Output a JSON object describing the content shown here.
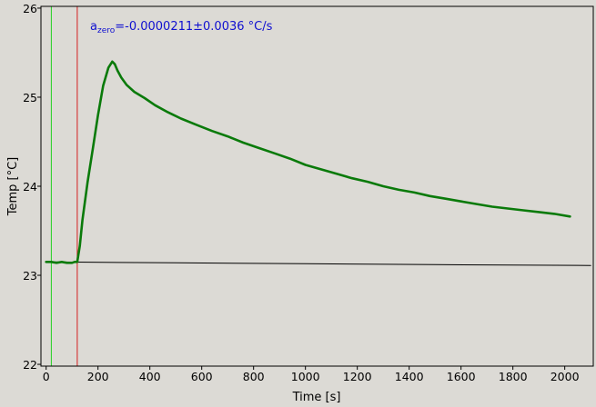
{
  "colors": {
    "background": "#dcdad5",
    "series": "#0a7a0a",
    "baseline": "#000000",
    "start_marker": "#22d022",
    "end_marker": "#d42020",
    "annotation": "#1010d0",
    "axis": "#000000"
  },
  "chart_data": {
    "type": "line",
    "title": "",
    "xlabel": "Time [s]",
    "ylabel": "Temp [°C]",
    "xlim": [
      -20,
      2110
    ],
    "ylim": [
      21.98,
      26.02
    ],
    "xticks": [
      0,
      200,
      400,
      600,
      800,
      1000,
      1200,
      1400,
      1600,
      1800,
      2000
    ],
    "yticks": [
      22,
      23,
      24,
      25,
      26
    ],
    "grid": false,
    "legend": "none",
    "annotation": {
      "base": "a",
      "subscript": "zero",
      "text": "=-0.0000211±0.0036 °C/s",
      "position": "top-left"
    },
    "vertical_markers": [
      {
        "x": 20,
        "color": "start_marker"
      },
      {
        "x": 120,
        "color": "end_marker"
      }
    ],
    "series": [
      {
        "role": "measurement",
        "color": "series",
        "x": [
          0,
          20,
          40,
          60,
          80,
          100,
          110,
          120,
          130,
          140,
          160,
          180,
          200,
          220,
          240,
          255,
          265,
          275,
          290,
          310,
          340,
          380,
          420,
          470,
          520,
          580,
          640,
          700,
          760,
          820,
          880,
          940,
          1000,
          1060,
          1120,
          1180,
          1240,
          1300,
          1360,
          1420,
          1480,
          1540,
          1600,
          1660,
          1720,
          1780,
          1840,
          1900,
          1960,
          2020
        ],
        "y": [
          23.15,
          23.15,
          23.14,
          23.15,
          23.14,
          23.14,
          23.15,
          23.15,
          23.33,
          23.62,
          24.05,
          24.42,
          24.8,
          25.13,
          25.33,
          25.4,
          25.37,
          25.3,
          25.22,
          25.14,
          25.06,
          24.99,
          24.91,
          24.83,
          24.76,
          24.69,
          24.62,
          24.56,
          24.49,
          24.43,
          24.37,
          24.31,
          24.24,
          24.19,
          24.14,
          24.09,
          24.05,
          24.0,
          23.96,
          23.93,
          23.89,
          23.86,
          23.83,
          23.8,
          23.77,
          23.75,
          23.73,
          23.71,
          23.69,
          23.66
        ]
      },
      {
        "role": "baseline",
        "color": "baseline",
        "x": [
          0,
          500,
          1000,
          1500,
          2100
        ],
        "y": [
          23.15,
          23.14,
          23.13,
          23.12,
          23.11
        ]
      }
    ]
  }
}
